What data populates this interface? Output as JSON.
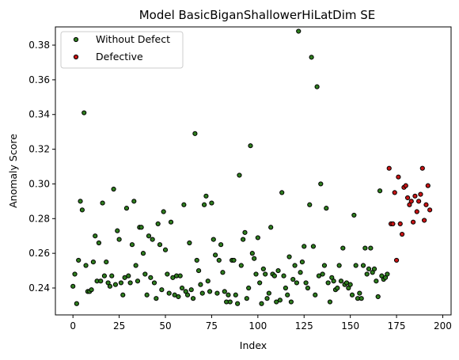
{
  "chart_data": {
    "type": "scatter",
    "title": "Model BasicBiganShallowerHiLatDim SE",
    "xlabel": "Index",
    "ylabel": "Anomaly Score",
    "xlim": [
      -9.5,
      204.5
    ],
    "ylim": [
      0.2245,
      0.3905
    ],
    "xticks": [
      0,
      25,
      50,
      75,
      100,
      125,
      150,
      175,
      200
    ],
    "yticks": [
      0.24,
      0.26,
      0.28,
      0.3,
      0.32,
      0.34,
      0.36,
      0.38
    ],
    "grid": false,
    "legend": {
      "position": "top-left"
    },
    "series": [
      {
        "name": "Without Defect",
        "color": "#2e7d1e",
        "values": [
          [
            0,
            0.241
          ],
          [
            1,
            0.248
          ],
          [
            2,
            0.231
          ],
          [
            3,
            0.256
          ],
          [
            4,
            0.29
          ],
          [
            5,
            0.285
          ],
          [
            6,
            0.341
          ],
          [
            7,
            0.253
          ],
          [
            8,
            0.238
          ],
          [
            9,
            0.238
          ],
          [
            10,
            0.239
          ],
          [
            11,
            0.255
          ],
          [
            12,
            0.27
          ],
          [
            13,
            0.244
          ],
          [
            14,
            0.266
          ],
          [
            15,
            0.244
          ],
          [
            16,
            0.289
          ],
          [
            17,
            0.247
          ],
          [
            18,
            0.255
          ],
          [
            19,
            0.243
          ],
          [
            20,
            0.241
          ],
          [
            21,
            0.247
          ],
          [
            22,
            0.297
          ],
          [
            23,
            0.242
          ],
          [
            24,
            0.273
          ],
          [
            25,
            0.268
          ],
          [
            26,
            0.243
          ],
          [
            27,
            0.236
          ],
          [
            28,
            0.246
          ],
          [
            29,
            0.286
          ],
          [
            30,
            0.247
          ],
          [
            31,
            0.243
          ],
          [
            32,
            0.265
          ],
          [
            33,
            0.29
          ],
          [
            34,
            0.253
          ],
          [
            35,
            0.244
          ],
          [
            36,
            0.275
          ],
          [
            37,
            0.275
          ],
          [
            38,
            0.26
          ],
          [
            39,
            0.248
          ],
          [
            40,
            0.236
          ],
          [
            41,
            0.27
          ],
          [
            42,
            0.246
          ],
          [
            43,
            0.268
          ],
          [
            44,
            0.243
          ],
          [
            45,
            0.234
          ],
          [
            46,
            0.277
          ],
          [
            47,
            0.265
          ],
          [
            48,
            0.239
          ],
          [
            49,
            0.284
          ],
          [
            50,
            0.262
          ],
          [
            51,
            0.248
          ],
          [
            52,
            0.237
          ],
          [
            53,
            0.278
          ],
          [
            54,
            0.246
          ],
          [
            55,
            0.236
          ],
          [
            56,
            0.247
          ],
          [
            57,
            0.235
          ],
          [
            58,
            0.247
          ],
          [
            59,
            0.24
          ],
          [
            60,
            0.288
          ],
          [
            61,
            0.238
          ],
          [
            62,
            0.236
          ],
          [
            63,
            0.266
          ],
          [
            64,
            0.239
          ],
          [
            65,
            0.234
          ],
          [
            66,
            0.329
          ],
          [
            67,
            0.256
          ],
          [
            68,
            0.25
          ],
          [
            69,
            0.242
          ],
          [
            70,
            0.237
          ],
          [
            71,
            0.288
          ],
          [
            72,
            0.293
          ],
          [
            73,
            0.244
          ],
          [
            74,
            0.238
          ],
          [
            75,
            0.289
          ],
          [
            76,
            0.268
          ],
          [
            77,
            0.259
          ],
          [
            78,
            0.237
          ],
          [
            79,
            0.256
          ],
          [
            80,
            0.265
          ],
          [
            81,
            0.249
          ],
          [
            82,
            0.238
          ],
          [
            83,
            0.232
          ],
          [
            84,
            0.236
          ],
          [
            85,
            0.232
          ],
          [
            86,
            0.256
          ],
          [
            87,
            0.256
          ],
          [
            88,
            0.236
          ],
          [
            89,
            0.231
          ],
          [
            90,
            0.305
          ],
          [
            91,
            0.253
          ],
          [
            92,
            0.268
          ],
          [
            93,
            0.272
          ],
          [
            94,
            0.234
          ],
          [
            95,
            0.24
          ],
          [
            96,
            0.322
          ],
          [
            97,
            0.26
          ],
          [
            98,
            0.257
          ],
          [
            99,
            0.248
          ],
          [
            100,
            0.269
          ],
          [
            101,
            0.243
          ],
          [
            102,
            0.231
          ],
          [
            103,
            0.251
          ],
          [
            104,
            0.248
          ],
          [
            105,
            0.234
          ],
          [
            106,
            0.237
          ],
          [
            107,
            0.275
          ],
          [
            108,
            0.248
          ],
          [
            109,
            0.247
          ],
          [
            110,
            0.232
          ],
          [
            111,
            0.25
          ],
          [
            112,
            0.233
          ],
          [
            113,
            0.295
          ],
          [
            114,
            0.247
          ],
          [
            115,
            0.24
          ],
          [
            116,
            0.236
          ],
          [
            117,
            0.258
          ],
          [
            118,
            0.232
          ],
          [
            119,
            0.245
          ],
          [
            120,
            0.253
          ],
          [
            121,
            0.243
          ],
          [
            122,
            0.388
          ],
          [
            123,
            0.249
          ],
          [
            124,
            0.255
          ],
          [
            125,
            0.264
          ],
          [
            126,
            0.243
          ],
          [
            127,
            0.24
          ],
          [
            128,
            0.288
          ],
          [
            129,
            0.373
          ],
          [
            130,
            0.264
          ],
          [
            131,
            0.236
          ],
          [
            132,
            0.356
          ],
          [
            133,
            0.247
          ],
          [
            134,
            0.3
          ],
          [
            135,
            0.248
          ],
          [
            136,
            0.253
          ],
          [
            137,
            0.286
          ],
          [
            138,
            0.243
          ],
          [
            139,
            0.232
          ],
          [
            140,
            0.246
          ],
          [
            141,
            0.244
          ],
          [
            142,
            0.239
          ],
          [
            143,
            0.24
          ],
          [
            144,
            0.253
          ],
          [
            145,
            0.244
          ],
          [
            146,
            0.263
          ],
          [
            147,
            0.242
          ],
          [
            148,
            0.243
          ],
          [
            149,
            0.24
          ],
          [
            150,
            0.242
          ],
          [
            151,
            0.236
          ],
          [
            152,
            0.282
          ],
          [
            153,
            0.253
          ],
          [
            154,
            0.234
          ],
          [
            155,
            0.237
          ],
          [
            156,
            0.234
          ],
          [
            157,
            0.253
          ],
          [
            158,
            0.263
          ],
          [
            159,
            0.248
          ],
          [
            160,
            0.251
          ],
          [
            161,
            0.263
          ],
          [
            162,
            0.249
          ],
          [
            163,
            0.251
          ],
          [
            164,
            0.244
          ],
          [
            165,
            0.235
          ],
          [
            166,
            0.296
          ],
          [
            167,
            0.247
          ],
          [
            168,
            0.245
          ],
          [
            169,
            0.246
          ],
          [
            170,
            0.248
          ]
        ]
      },
      {
        "name": "Defective",
        "color": "#c81414",
        "values": [
          [
            171,
            0.309
          ],
          [
            172,
            0.277
          ],
          [
            173,
            0.277
          ],
          [
            174,
            0.295
          ],
          [
            175,
            0.256
          ],
          [
            176,
            0.304
          ],
          [
            177,
            0.277
          ],
          [
            178,
            0.271
          ],
          [
            179,
            0.298
          ],
          [
            180,
            0.299
          ],
          [
            181,
            0.292
          ],
          [
            182,
            0.288
          ],
          [
            183,
            0.29
          ],
          [
            184,
            0.278
          ],
          [
            185,
            0.293
          ],
          [
            186,
            0.284
          ],
          [
            187,
            0.29
          ],
          [
            188,
            0.294
          ],
          [
            189,
            0.309
          ],
          [
            190,
            0.279
          ],
          [
            191,
            0.288
          ],
          [
            192,
            0.299
          ],
          [
            193,
            0.285
          ]
        ]
      }
    ]
  }
}
